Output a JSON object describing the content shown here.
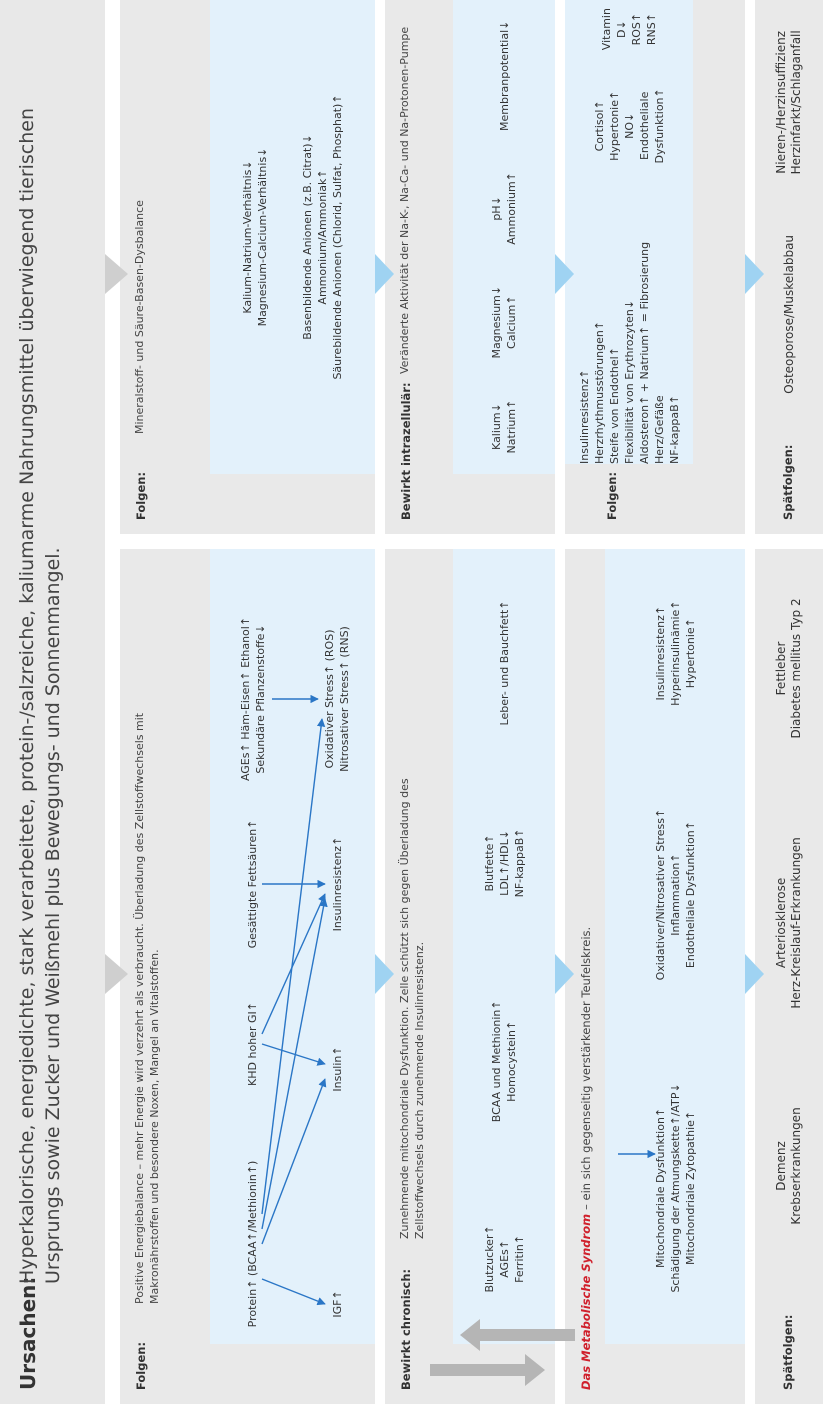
{
  "header": {
    "label": "Ursachen:",
    "text": "Hyperkalorische, energiedichte, stark verarbeitete, protein-/salzreiche, kaliumarme Nahrungsmittel überwiegend tierischen Ursprungs sowie Zucker und Weißmehl plus Bewegungs- und Sonnenmangel."
  },
  "left": [
    {
      "label": "Folgen:",
      "intro": "Positive Energiebalance – mehr Energie wird verzehrt als verbraucht. Überladung des Zellstoffwechsels mit Makronährstoffen und besondere Noxen, Mangel an Vitalstoffen.",
      "groups": [
        [
          "Protein↑ (BCAA↑/Methionin↑)"
        ],
        [
          "KHD hoher GI↑"
        ],
        [
          "Gesättigte Fettsäuren↑"
        ],
        [
          "AGEs↑ Häm-Eisen↑ Ethanol↑",
          "Sekundäre Pflanzenstoffe↓"
        ]
      ],
      "effects": [
        [
          "IGF↑"
        ],
        [
          "Insulin↑"
        ],
        [
          "Insulinresistenz↑"
        ],
        [
          "Oxidativer Stress↑ (ROS)",
          "Nitrosativer Stress↑ (RNS)"
        ]
      ]
    },
    {
      "label": "Bewirkt chronisch:",
      "intro": "Zunehmende mitochondriale Dysfunktion. Zelle schützt sich gegen Überladung des Zellstoffwechsels durch zunehmende Insulinresistenz.",
      "groups": [
        [
          "Blutzucker↑",
          "AGEs↑",
          "Ferritin↑"
        ],
        [
          "BCAA und Methionin↑",
          "Homocystein↑"
        ],
        [
          "Blutfette↑",
          "LDL↑/HDL↓",
          "NF-kappaB↑"
        ],
        [
          "Leber- und Bauchfett↑"
        ]
      ]
    },
    {
      "label": "Das Metabolische Syndrom",
      "label_suffix": "– ein sich gegenseitig verstärkender Teufelskreis.",
      "groups": [
        [
          "Mitochondriale Dysfunktion↑",
          "Schädigung der Atmungskette↑/ATP↓",
          "Mitochondriale Zytopathie↑"
        ],
        [
          "Oxidativer/Nitrosativer Stress↑",
          "Inflammation↑",
          "Endotheliale Dysfunktion↑"
        ],
        [
          "Insulinresistenz↑",
          "Hyperinsulinämie↑",
          "Hypertonie↑"
        ]
      ]
    },
    {
      "label": "Spätfolgen:",
      "groups": [
        [
          "Demenz",
          "Krebserkrankungen"
        ],
        [
          "Arteriosklerose",
          "Herz-Kreislauf-Erkrankungen"
        ],
        [
          "Fettleber",
          "Diabetes mellitus Typ 2"
        ]
      ]
    }
  ],
  "right": [
    {
      "label": "Folgen:",
      "intro": "Mineralstoff- und Säure-Basen-Dysbalance",
      "groups": [
        [
          "Kalium-Natrium-Verhältnis↓",
          "Magnesium-Calcium-Verhältnis↓"
        ],
        [
          "Basenbildende Anionen (z.B. Citrat)↓",
          "Ammonium/Ammoniak↑",
          "Säurebildende Anionen (Chlorid, Sulfat, Phosphat)↑"
        ]
      ]
    },
    {
      "label": "Bewirkt intrazellulär:",
      "intro": "Veränderte Aktivität der Na-K-, Na-Ca- und Na-Protonen-Pumpe",
      "groups": [
        [
          "Kalium↓",
          "Natrium↑"
        ],
        [
          "Magnesium↓",
          "Calcium↑"
        ],
        [
          "pH↓",
          "Ammonium↑"
        ],
        [
          "Membranpotential↓"
        ]
      ]
    },
    {
      "label": "Folgen:",
      "groups": [
        [
          "Insulinresistenz↑",
          "Herzrhythmusstörungen↑",
          "Steife von Endothel↑",
          "Flexibilität von Erythrozyten↓",
          "Aldosteron↑ + Natrium↑ = Fibrosierung Herz/Gefäße",
          "NF-kappaB↑"
        ],
        [
          "Cortisol↑",
          "Hypertonie↑",
          "NO↓",
          "Endotheliale Dysfunktion↑"
        ],
        [
          "Vitamin D↓",
          "ROS↑",
          "RNS↑"
        ]
      ]
    },
    {
      "label": "Spätfolgen:",
      "groups": [
        [
          "Osteoporose/Muskelabbau"
        ],
        [
          "Nieren-/Herzinsuffizienz",
          "Herzinfarkt/Schlaganfall"
        ]
      ]
    }
  ]
}
